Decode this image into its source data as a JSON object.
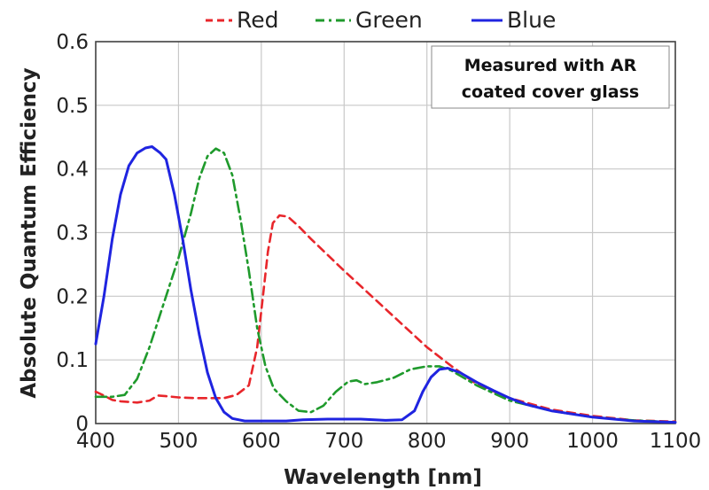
{
  "chart_data": {
    "type": "line",
    "title": "",
    "xlabel": "Wavelength [nm]",
    "ylabel": "Absolute Quantum Efficiency",
    "xlim": [
      400,
      1100
    ],
    "ylim": [
      0,
      0.6
    ],
    "x_ticks": [
      "400",
      "500",
      "600",
      "700",
      "800",
      "900",
      "1000",
      "1100"
    ],
    "y_ticks": [
      "0",
      "0.1",
      "0.2",
      "0.3",
      "0.4",
      "0.5",
      "0.6"
    ],
    "grid": true,
    "legend_position": "top",
    "annotation_lines": [
      "Measured with AR",
      "coated cover glass"
    ],
    "series": [
      {
        "name": "Red",
        "color": "#e8262b",
        "dash": "dashed",
        "points": [
          [
            400,
            0.05
          ],
          [
            410,
            0.044
          ],
          [
            420,
            0.037
          ],
          [
            430,
            0.035
          ],
          [
            450,
            0.033
          ],
          [
            465,
            0.036
          ],
          [
            475,
            0.044
          ],
          [
            485,
            0.043
          ],
          [
            500,
            0.041
          ],
          [
            520,
            0.04
          ],
          [
            540,
            0.04
          ],
          [
            555,
            0.04
          ],
          [
            570,
            0.045
          ],
          [
            585,
            0.06
          ],
          [
            595,
            0.12
          ],
          [
            602,
            0.2
          ],
          [
            608,
            0.27
          ],
          [
            614,
            0.315
          ],
          [
            622,
            0.327
          ],
          [
            632,
            0.325
          ],
          [
            645,
            0.31
          ],
          [
            660,
            0.29
          ],
          [
            700,
            0.24
          ],
          [
            750,
            0.18
          ],
          [
            800,
            0.12
          ],
          [
            830,
            0.09
          ],
          [
            860,
            0.062
          ],
          [
            900,
            0.04
          ],
          [
            950,
            0.022
          ],
          [
            1000,
            0.012
          ],
          [
            1050,
            0.005
          ],
          [
            1100,
            0.003
          ]
        ]
      },
      {
        "name": "Green",
        "color": "#1f9a2c",
        "dash": "dashdot",
        "points": [
          [
            400,
            0.042
          ],
          [
            420,
            0.042
          ],
          [
            435,
            0.045
          ],
          [
            450,
            0.07
          ],
          [
            465,
            0.12
          ],
          [
            480,
            0.18
          ],
          [
            500,
            0.26
          ],
          [
            515,
            0.33
          ],
          [
            525,
            0.385
          ],
          [
            535,
            0.42
          ],
          [
            545,
            0.432
          ],
          [
            555,
            0.425
          ],
          [
            565,
            0.39
          ],
          [
            575,
            0.32
          ],
          [
            585,
            0.24
          ],
          [
            595,
            0.15
          ],
          [
            605,
            0.09
          ],
          [
            615,
            0.055
          ],
          [
            630,
            0.035
          ],
          [
            645,
            0.02
          ],
          [
            660,
            0.018
          ],
          [
            675,
            0.028
          ],
          [
            690,
            0.05
          ],
          [
            705,
            0.066
          ],
          [
            715,
            0.068
          ],
          [
            725,
            0.062
          ],
          [
            740,
            0.065
          ],
          [
            760,
            0.072
          ],
          [
            780,
            0.085
          ],
          [
            800,
            0.09
          ],
          [
            815,
            0.09
          ],
          [
            830,
            0.083
          ],
          [
            860,
            0.06
          ],
          [
            900,
            0.036
          ],
          [
            950,
            0.02
          ],
          [
            1000,
            0.01
          ],
          [
            1050,
            0.005
          ],
          [
            1100,
            0.002
          ]
        ]
      },
      {
        "name": "Blue",
        "color": "#1f24e0",
        "dash": "solid",
        "points": [
          [
            400,
            0.125
          ],
          [
            410,
            0.2
          ],
          [
            420,
            0.29
          ],
          [
            430,
            0.36
          ],
          [
            440,
            0.405
          ],
          [
            450,
            0.425
          ],
          [
            460,
            0.433
          ],
          [
            468,
            0.435
          ],
          [
            478,
            0.425
          ],
          [
            485,
            0.415
          ],
          [
            495,
            0.36
          ],
          [
            505,
            0.29
          ],
          [
            515,
            0.21
          ],
          [
            525,
            0.14
          ],
          [
            535,
            0.08
          ],
          [
            545,
            0.04
          ],
          [
            555,
            0.018
          ],
          [
            565,
            0.008
          ],
          [
            580,
            0.004
          ],
          [
            600,
            0.004
          ],
          [
            630,
            0.004
          ],
          [
            650,
            0.006
          ],
          [
            680,
            0.007
          ],
          [
            720,
            0.007
          ],
          [
            750,
            0.005
          ],
          [
            770,
            0.006
          ],
          [
            785,
            0.02
          ],
          [
            795,
            0.05
          ],
          [
            805,
            0.073
          ],
          [
            815,
            0.085
          ],
          [
            825,
            0.087
          ],
          [
            840,
            0.08
          ],
          [
            860,
            0.065
          ],
          [
            880,
            0.052
          ],
          [
            900,
            0.04
          ],
          [
            920,
            0.03
          ],
          [
            950,
            0.02
          ],
          [
            1000,
            0.01
          ],
          [
            1050,
            0.004
          ],
          [
            1100,
            0.002
          ]
        ]
      }
    ]
  }
}
